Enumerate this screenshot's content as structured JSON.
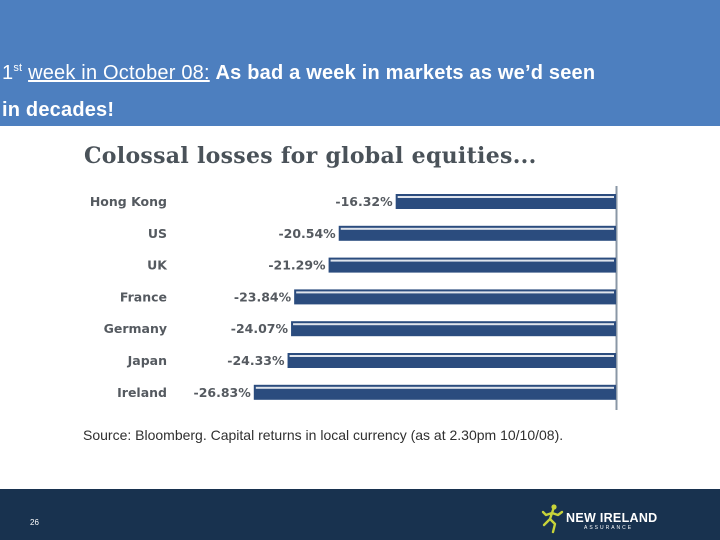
{
  "header": {
    "title_week": "week in October 08:",
    "title_rest": "As bad a week in markets as we’d seen",
    "title_line2": "in decades!"
  },
  "chart_data": {
    "type": "bar",
    "orientation": "horizontal",
    "title": "Colossal losses for global equities...",
    "categories": [
      "Hong Kong",
      "US",
      "UK",
      "France",
      "Germany",
      "Japan",
      "Ireland"
    ],
    "values": [
      -16.32,
      -20.54,
      -21.29,
      -23.84,
      -24.07,
      -24.33,
      -26.83
    ],
    "value_labels": [
      "-16.32%",
      "-20.54%",
      "-21.29%",
      "-23.84%",
      "-24.07%",
      "-24.33%",
      "-26.83%"
    ],
    "unit": "%",
    "source": "Source:  Bloomberg.  Capital returns in local currency (as at 2.30pm 10/10/08).",
    "bar_color": "#2b4c7e"
  },
  "footer": {
    "page_number": "26",
    "logo_name": "NEW IRELAND",
    "logo_sub": "ASSURANCE"
  }
}
